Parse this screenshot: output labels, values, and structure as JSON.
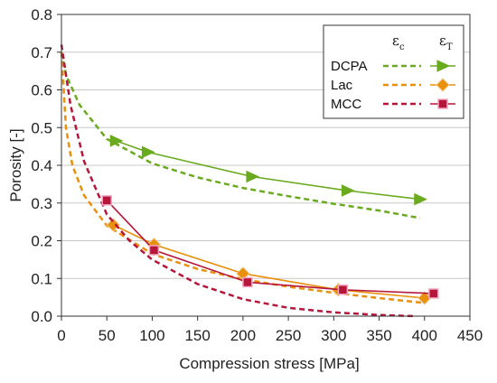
{
  "chart_data": {
    "type": "line",
    "xlabel": "Compression stress  [MPa]",
    "ylabel": "Porosity [-]",
    "xlim": [
      0,
      450
    ],
    "ylim": [
      0,
      0.8
    ],
    "x_ticks": [
      "0",
      "50",
      "100",
      "150",
      "200",
      "250",
      "300",
      "350",
      "400",
      "450"
    ],
    "y_ticks": [
      "0.0",
      "0.1",
      "0.2",
      "0.3",
      "0.4",
      "0.5",
      "0.6",
      "0.7",
      "0.8"
    ],
    "grid": "horizontal",
    "legend_position": "top-right",
    "legend": {
      "col_c_main": "ε",
      "col_c_sub": "c",
      "col_t_main": "ε",
      "col_t_sub": "T",
      "rows": [
        "DCPA",
        "Lac",
        "MCC"
      ]
    },
    "series": [
      {
        "name": "DCPA",
        "color": "#6aaa1e",
        "marker": "triangle-right",
        "measured_eps_T": [
          {
            "x": 60,
            "y": 0.465
          },
          {
            "x": 95,
            "y": 0.435
          },
          {
            "x": 210,
            "y": 0.37
          },
          {
            "x": 315,
            "y": 0.333
          },
          {
            "x": 395,
            "y": 0.31
          }
        ],
        "fit_eps_c": [
          {
            "x": 0,
            "y": 0.7
          },
          {
            "x": 5,
            "y": 0.64
          },
          {
            "x": 20,
            "y": 0.56
          },
          {
            "x": 50,
            "y": 0.47
          },
          {
            "x": 100,
            "y": 0.405
          },
          {
            "x": 150,
            "y": 0.368
          },
          {
            "x": 200,
            "y": 0.34
          },
          {
            "x": 250,
            "y": 0.318
          },
          {
            "x": 300,
            "y": 0.298
          },
          {
            "x": 350,
            "y": 0.28
          },
          {
            "x": 395,
            "y": 0.26
          }
        ]
      },
      {
        "name": "Lac",
        "color": "#e8900c",
        "marker": "diamond",
        "measured_eps_T": [
          {
            "x": 57,
            "y": 0.242
          },
          {
            "x": 102,
            "y": 0.19
          },
          {
            "x": 200,
            "y": 0.113
          },
          {
            "x": 305,
            "y": 0.07
          },
          {
            "x": 400,
            "y": 0.048
          }
        ],
        "fit_eps_c": [
          {
            "x": 0,
            "y": 0.7
          },
          {
            "x": 5,
            "y": 0.5
          },
          {
            "x": 12,
            "y": 0.4
          },
          {
            "x": 25,
            "y": 0.32
          },
          {
            "x": 50,
            "y": 0.24
          },
          {
            "x": 100,
            "y": 0.165
          },
          {
            "x": 150,
            "y": 0.125
          },
          {
            "x": 200,
            "y": 0.098
          },
          {
            "x": 250,
            "y": 0.078
          },
          {
            "x": 300,
            "y": 0.062
          },
          {
            "x": 350,
            "y": 0.048
          },
          {
            "x": 400,
            "y": 0.035
          }
        ]
      },
      {
        "name": "MCC",
        "color": "#b5163a",
        "marker": "square",
        "measured_eps_T": [
          {
            "x": 50,
            "y": 0.307
          },
          {
            "x": 102,
            "y": 0.175
          },
          {
            "x": 205,
            "y": 0.09
          },
          {
            "x": 310,
            "y": 0.07
          },
          {
            "x": 410,
            "y": 0.06
          }
        ],
        "fit_eps_c": [
          {
            "x": 0,
            "y": 0.72
          },
          {
            "x": 10,
            "y": 0.56
          },
          {
            "x": 25,
            "y": 0.41
          },
          {
            "x": 50,
            "y": 0.27
          },
          {
            "x": 75,
            "y": 0.2
          },
          {
            "x": 100,
            "y": 0.15
          },
          {
            "x": 150,
            "y": 0.085
          },
          {
            "x": 200,
            "y": 0.045
          },
          {
            "x": 250,
            "y": 0.022
          },
          {
            "x": 300,
            "y": 0.01
          },
          {
            "x": 350,
            "y": 0.003
          },
          {
            "x": 390,
            "y": 0.0
          }
        ]
      }
    ]
  }
}
